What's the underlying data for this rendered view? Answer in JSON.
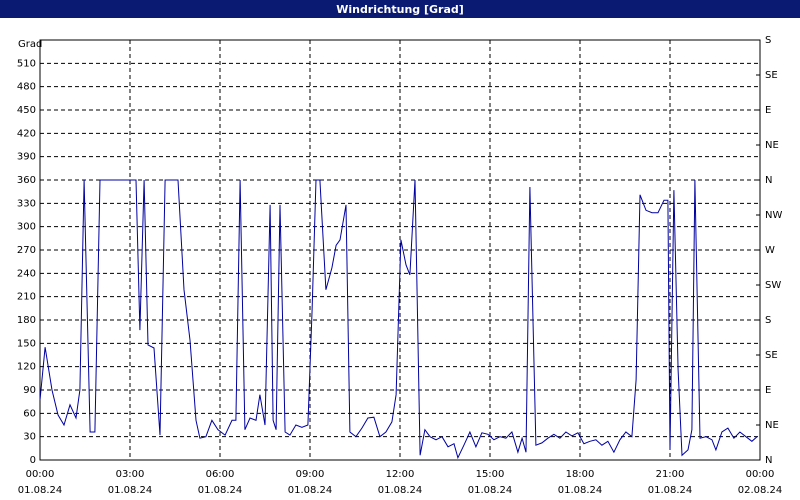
{
  "chart_data": {
    "type": "line",
    "title": "Windrichtung [Grad]",
    "y_label": "Grad",
    "color": "#0000a0",
    "grid": true,
    "x": [
      0,
      0.17,
      0.4,
      0.6,
      0.8,
      1.0,
      1.2,
      1.33,
      1.47,
      1.67,
      1.83,
      2.0,
      3.0,
      3.2,
      3.33,
      3.47,
      3.6,
      3.8,
      4.0,
      4.17,
      4.6,
      4.8,
      5.0,
      5.2,
      5.33,
      5.53,
      5.73,
      5.93,
      6.17,
      6.4,
      6.53,
      6.67,
      6.83,
      7.0,
      7.2,
      7.33,
      7.5,
      7.67,
      7.77,
      7.87,
      8.0,
      8.17,
      8.33,
      8.53,
      8.73,
      8.93,
      9.07,
      9.2,
      9.33,
      9.53,
      9.73,
      9.87,
      10.0,
      10.2,
      10.33,
      10.53,
      10.73,
      10.93,
      11.13,
      11.33,
      11.53,
      11.73,
      11.87,
      12.03,
      12.2,
      12.33,
      12.5,
      12.67,
      12.83,
      13.0,
      13.2,
      13.4,
      13.6,
      13.8,
      13.93,
      14.13,
      14.33,
      14.53,
      14.73,
      14.93,
      15.13,
      15.33,
      15.53,
      15.73,
      15.93,
      16.07,
      16.2,
      16.33,
      16.53,
      16.73,
      16.93,
      17.13,
      17.33,
      17.53,
      17.73,
      17.93,
      18.13,
      18.33,
      18.53,
      18.73,
      18.93,
      19.13,
      19.33,
      19.53,
      19.73,
      19.87,
      20.0,
      20.2,
      20.4,
      20.6,
      20.8,
      20.93,
      21.0,
      21.13,
      21.27,
      21.4,
      21.6,
      21.73,
      21.83,
      22.0,
      22.2,
      22.4,
      22.53,
      22.73,
      22.93,
      23.13,
      23.33,
      23.53,
      23.73,
      23.9
    ],
    "values": [
      77,
      145,
      90,
      58,
      45,
      71,
      54,
      90,
      360,
      36,
      36,
      360,
      360,
      360,
      167,
      360,
      148,
      144,
      32,
      360,
      360,
      219,
      154,
      51,
      28,
      30,
      51,
      39,
      32,
      51,
      51,
      360,
      39,
      54,
      51,
      84,
      45,
      328,
      51,
      39,
      328,
      36,
      32,
      45,
      42,
      45,
      193,
      360,
      360,
      219,
      247,
      276,
      283,
      328,
      36,
      30,
      41,
      54,
      55,
      30,
      36,
      49,
      84,
      283,
      251,
      238,
      360,
      6,
      39,
      30,
      26,
      30,
      17,
      21,
      3,
      19,
      36,
      17,
      35,
      33,
      26,
      30,
      28,
      36,
      10,
      28,
      10,
      351,
      19,
      22,
      28,
      33,
      28,
      36,
      31,
      35,
      21,
      24,
      26,
      19,
      24,
      10,
      26,
      36,
      30,
      103,
      341,
      321,
      318,
      318,
      334,
      334,
      13,
      347,
      116,
      6,
      13,
      39,
      360,
      28,
      30,
      26,
      13,
      36,
      41,
      28,
      36,
      30,
      24,
      30
    ],
    "xlim": [
      0,
      24
    ],
    "xticks": [
      {
        "value": 0,
        "label": "00:00"
      },
      {
        "value": 3,
        "label": "03:00"
      },
      {
        "value": 6,
        "label": "06:00"
      },
      {
        "value": 9,
        "label": "09:00"
      },
      {
        "value": 12,
        "label": "12:00"
      },
      {
        "value": 15,
        "label": "15:00"
      },
      {
        "value": 18,
        "label": "18:00"
      },
      {
        "value": 21,
        "label": "21:00"
      },
      {
        "value": 24,
        "label": "00:00"
      }
    ],
    "xtick_dates": [
      "01.08.24",
      "01.08.24",
      "01.08.24",
      "01.08.24",
      "01.08.24",
      "01.08.24",
      "01.08.24",
      "01.08.24",
      "02.08.24"
    ],
    "ylim": [
      0,
      540
    ],
    "yticks": [
      0,
      30,
      60,
      90,
      120,
      150,
      180,
      210,
      240,
      270,
      300,
      330,
      360,
      390,
      420,
      450,
      480,
      510
    ],
    "y2lim": [
      0,
      540
    ],
    "y2ticks": [
      {
        "value": 0,
        "label": "N"
      },
      {
        "value": 45,
        "label": "NE"
      },
      {
        "value": 90,
        "label": "E"
      },
      {
        "value": 135,
        "label": "SE"
      },
      {
        "value": 180,
        "label": "S"
      },
      {
        "value": 225,
        "label": "SW"
      },
      {
        "value": 270,
        "label": "W"
      },
      {
        "value": 315,
        "label": "NW"
      },
      {
        "value": 360,
        "label": "N"
      },
      {
        "value": 405,
        "label": "NE"
      },
      {
        "value": 450,
        "label": "E"
      },
      {
        "value": 495,
        "label": "SE"
      },
      {
        "value": 540,
        "label": "S"
      }
    ]
  }
}
